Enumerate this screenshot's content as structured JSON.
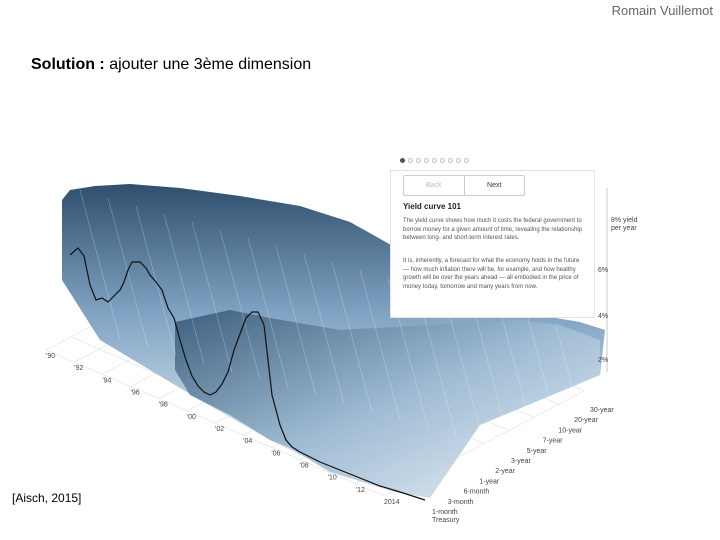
{
  "author": "Romain Vuillemot",
  "headline": {
    "bold": "Solution :",
    "rest": " ajouter une 3ème dimension"
  },
  "citation": "[Aisch, 2015]",
  "card": {
    "back_label": "Back",
    "next_label": "Next",
    "title": "Yield curve 101",
    "p1": "The yield curve shows how much it costs the federal government to borrow money for a given amount of time, revealing the relationship between long- and short-term interest rates.",
    "p2": "It is, inherently, a forecast for what the economy holds in the future — how much inflation there will be, for example, and how healthy growth will be over the years ahead — all embodied in the price of money today, tomorrow and many years from now.",
    "page_count": 9,
    "active_page": 0
  },
  "chart_data": {
    "type": "area",
    "year_ticks": [
      "'90",
      "'92",
      "'94",
      "'96",
      "'98",
      "'00",
      "'02",
      "'04",
      "'06",
      "'08",
      "'10",
      "'12",
      "2014"
    ],
    "maturity_ticks": [
      "1-month Treasury",
      "3-month",
      "6-month",
      "1-year",
      "2-year",
      "3-year",
      "5-year",
      "7-year",
      "10-year",
      "20-year",
      "30-year"
    ],
    "rate_ticks": [
      "2%",
      "4%",
      "6%",
      "8% yield per year"
    ],
    "colors": {
      "surface_top": "#2f4f6d",
      "surface_mid": "#7fa3c2",
      "surface_low": "#dde8f1",
      "line": "#111111",
      "grid": "#cfd8df"
    }
  }
}
